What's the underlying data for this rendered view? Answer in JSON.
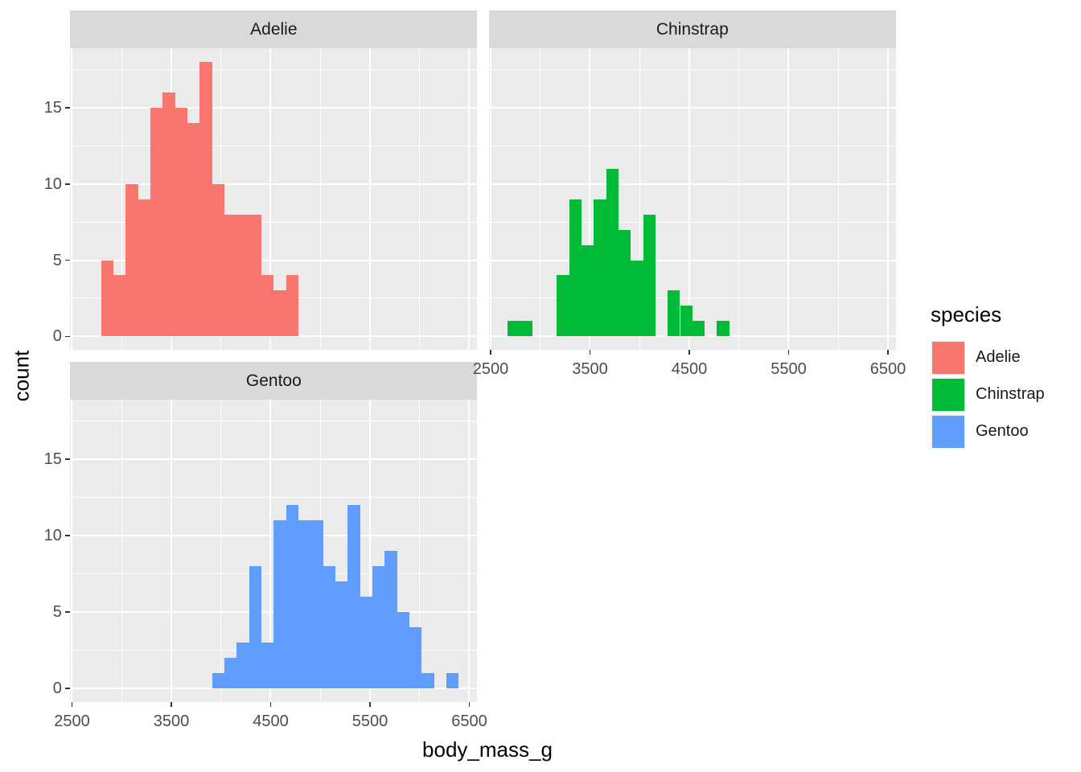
{
  "chart_data": {
    "type": "histogram",
    "x": {
      "label": "body_mass_g",
      "ticks": [
        2500,
        3500,
        4500,
        5500,
        6500
      ],
      "minor_ticks": [
        3000,
        4000,
        5000,
        6000
      ],
      "range": [
        2482.8,
        6579.4
      ]
    },
    "y": {
      "label": "count",
      "ticks": [
        0,
        5,
        10,
        15
      ],
      "minor_ticks": [
        2.5,
        7.5,
        12.5,
        17.5
      ],
      "range": [
        -0.9,
        18.9
      ]
    },
    "binwidth": 124.14,
    "facets": [
      {
        "label": "Adelie",
        "color": "#F8766D",
        "first_bin_left_edge": 2793.1,
        "counts": [
          5,
          4,
          10,
          9,
          15,
          16,
          15,
          14,
          18,
          10,
          8,
          8,
          8,
          4,
          3,
          4
        ]
      },
      {
        "label": "Chinstrap",
        "color": "#00BA38",
        "first_bin_left_edge": 2669.0,
        "counts": [
          1,
          1,
          0,
          0,
          4,
          9,
          6,
          9,
          11,
          7,
          5,
          8,
          0,
          3,
          2,
          1,
          0,
          1
        ]
      },
      {
        "label": "Gentoo",
        "color": "#619CFF",
        "first_bin_left_edge": 3910.3,
        "counts": [
          1,
          2,
          3,
          8,
          3,
          11,
          12,
          11,
          11,
          8,
          7,
          12,
          6,
          8,
          9,
          5,
          4,
          1,
          0,
          1
        ]
      }
    ]
  },
  "legend": {
    "title": "species",
    "items": [
      {
        "label": "Adelie",
        "color": "#F8766D"
      },
      {
        "label": "Chinstrap",
        "color": "#00BA38"
      },
      {
        "label": "Gentoo",
        "color": "#619CFF"
      }
    ]
  },
  "theme": {
    "panel_background": "#EBEBEB",
    "grid_color": "#FFFFFF",
    "strip_background": "#D9D9D9",
    "strip_text": "#1A1A1A",
    "tick_text": "#4D4D4D",
    "axis_title_text": "#000000",
    "tick_mark": "#333333"
  }
}
